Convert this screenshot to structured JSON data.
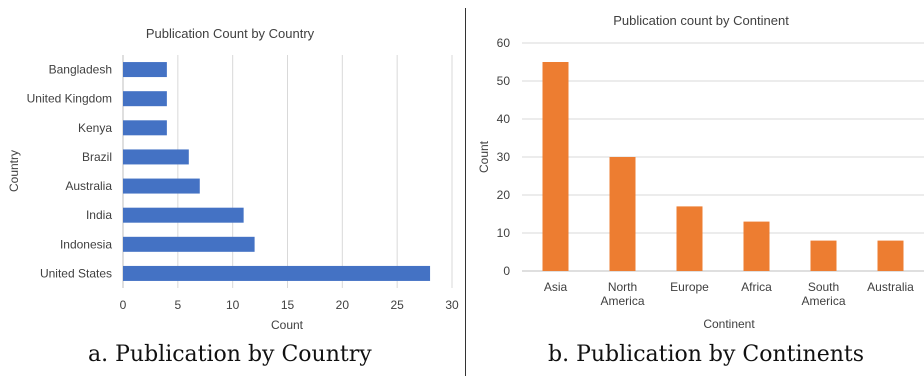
{
  "chart_data": [
    {
      "type": "bar",
      "orientation": "horizontal",
      "title": "Publication Count by Country",
      "xlabel": "Count",
      "ylabel": "Country",
      "xlim": [
        0,
        30
      ],
      "xticks": [
        "0",
        "5",
        "10",
        "15",
        "20",
        "25",
        "30"
      ],
      "grid": true,
      "color": "#4472C4",
      "categories": [
        "Bangladesh",
        "United Kingdom",
        "Kenya",
        "Brazil",
        "Australia",
        "India",
        "Indonesia",
        "United States"
      ],
      "values": [
        4,
        4,
        4,
        6,
        7,
        11,
        12,
        28
      ]
    },
    {
      "type": "bar",
      "orientation": "vertical",
      "title": "Publication count by Continent",
      "xlabel": "Continent",
      "ylabel": "Count",
      "ylim": [
        0,
        60
      ],
      "yticks": [
        "0",
        "10",
        "20",
        "30",
        "40",
        "50",
        "60"
      ],
      "grid": true,
      "color": "#ED7D31",
      "categories": [
        [
          "Asia"
        ],
        [
          "North",
          "America"
        ],
        [
          "Europe"
        ],
        [
          "Africa"
        ],
        [
          "South",
          "America"
        ],
        [
          "Australia"
        ]
      ],
      "values": [
        55,
        30,
        17,
        13,
        8,
        8
      ]
    }
  ],
  "captions": {
    "left": "a. Publication by Country",
    "right": "b. Publication by Continents"
  }
}
